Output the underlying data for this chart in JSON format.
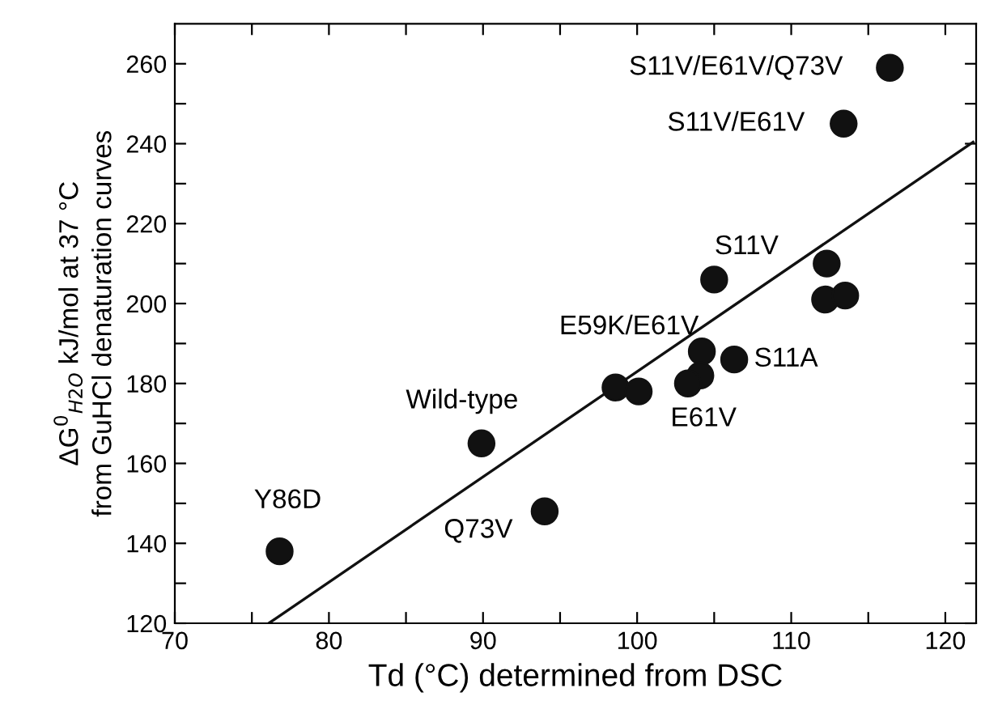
{
  "chart_data": {
    "type": "scatter",
    "xlabel": "Td (°C) determined from DSC",
    "ylabel": "ΔG$^{0}$$_{H2O}$ kJ/mol at 37 °C\nfrom GuHCl denaturation curves",
    "xlim": [
      70,
      122
    ],
    "ylim": [
      120,
      270
    ],
    "xticks": [
      70,
      80,
      90,
      100,
      110,
      120,
      {
        "value": 75,
        "label": null
      },
      {
        "value": 85,
        "label": null
      },
      {
        "value": 95,
        "label": null
      },
      {
        "value": 105,
        "label": null
      },
      {
        "value": 115,
        "label": null
      }
    ],
    "yticks": [
      120,
      140,
      160,
      180,
      200,
      220,
      240,
      260,
      {
        "value": 130,
        "label": null
      },
      {
        "value": 150,
        "label": null
      },
      {
        "value": 170,
        "label": null
      },
      {
        "value": 190,
        "label": null
      },
      {
        "value": 210,
        "label": null
      },
      {
        "value": 230,
        "label": null
      },
      {
        "value": 250,
        "label": null
      }
    ],
    "marker": "circle",
    "grid": false,
    "legend": false,
    "series": [
      {
        "color": "#111111",
        "x": [
          116.4,
          113.4,
          105.0,
          112.3,
          112.2,
          113.5,
          104.2,
          106.3,
          104.1,
          103.3,
          98.6,
          100.1,
          89.9,
          94.0,
          76.8
        ],
        "values": [
          259,
          245,
          206,
          210,
          201,
          202,
          188,
          186,
          182,
          180,
          179,
          178,
          165,
          148,
          138
        ]
      },
      {
        "type": "line",
        "color": "#111111",
        "line_style": "solid",
        "marker": "none",
        "x": [
          76.1,
          121.8
        ],
        "values": [
          120,
          240.4
        ]
      }
    ],
    "annotations": [
      {
        "text": "S11V/E61V/Q73V",
        "x": 116.4,
        "y": 259
      },
      {
        "text": "S11V/E61V",
        "x": 113.4,
        "y": 245
      },
      {
        "text": "S11V",
        "x": 105.0,
        "y": 206
      },
      {
        "text": "E59K/E61V",
        "x": 104.2,
        "y": 188
      },
      {
        "text": "S11A",
        "x": 106.3,
        "y": 186
      },
      {
        "text": "E61V",
        "x": 104.1,
        "y": 182
      },
      {
        "text": "Wild-type",
        "x": 89.9,
        "y": 165
      },
      {
        "text": "Q73V",
        "x": 94.0,
        "y": 148
      },
      {
        "text": "Y86D",
        "x": 76.8,
        "y": 138
      }
    ]
  }
}
